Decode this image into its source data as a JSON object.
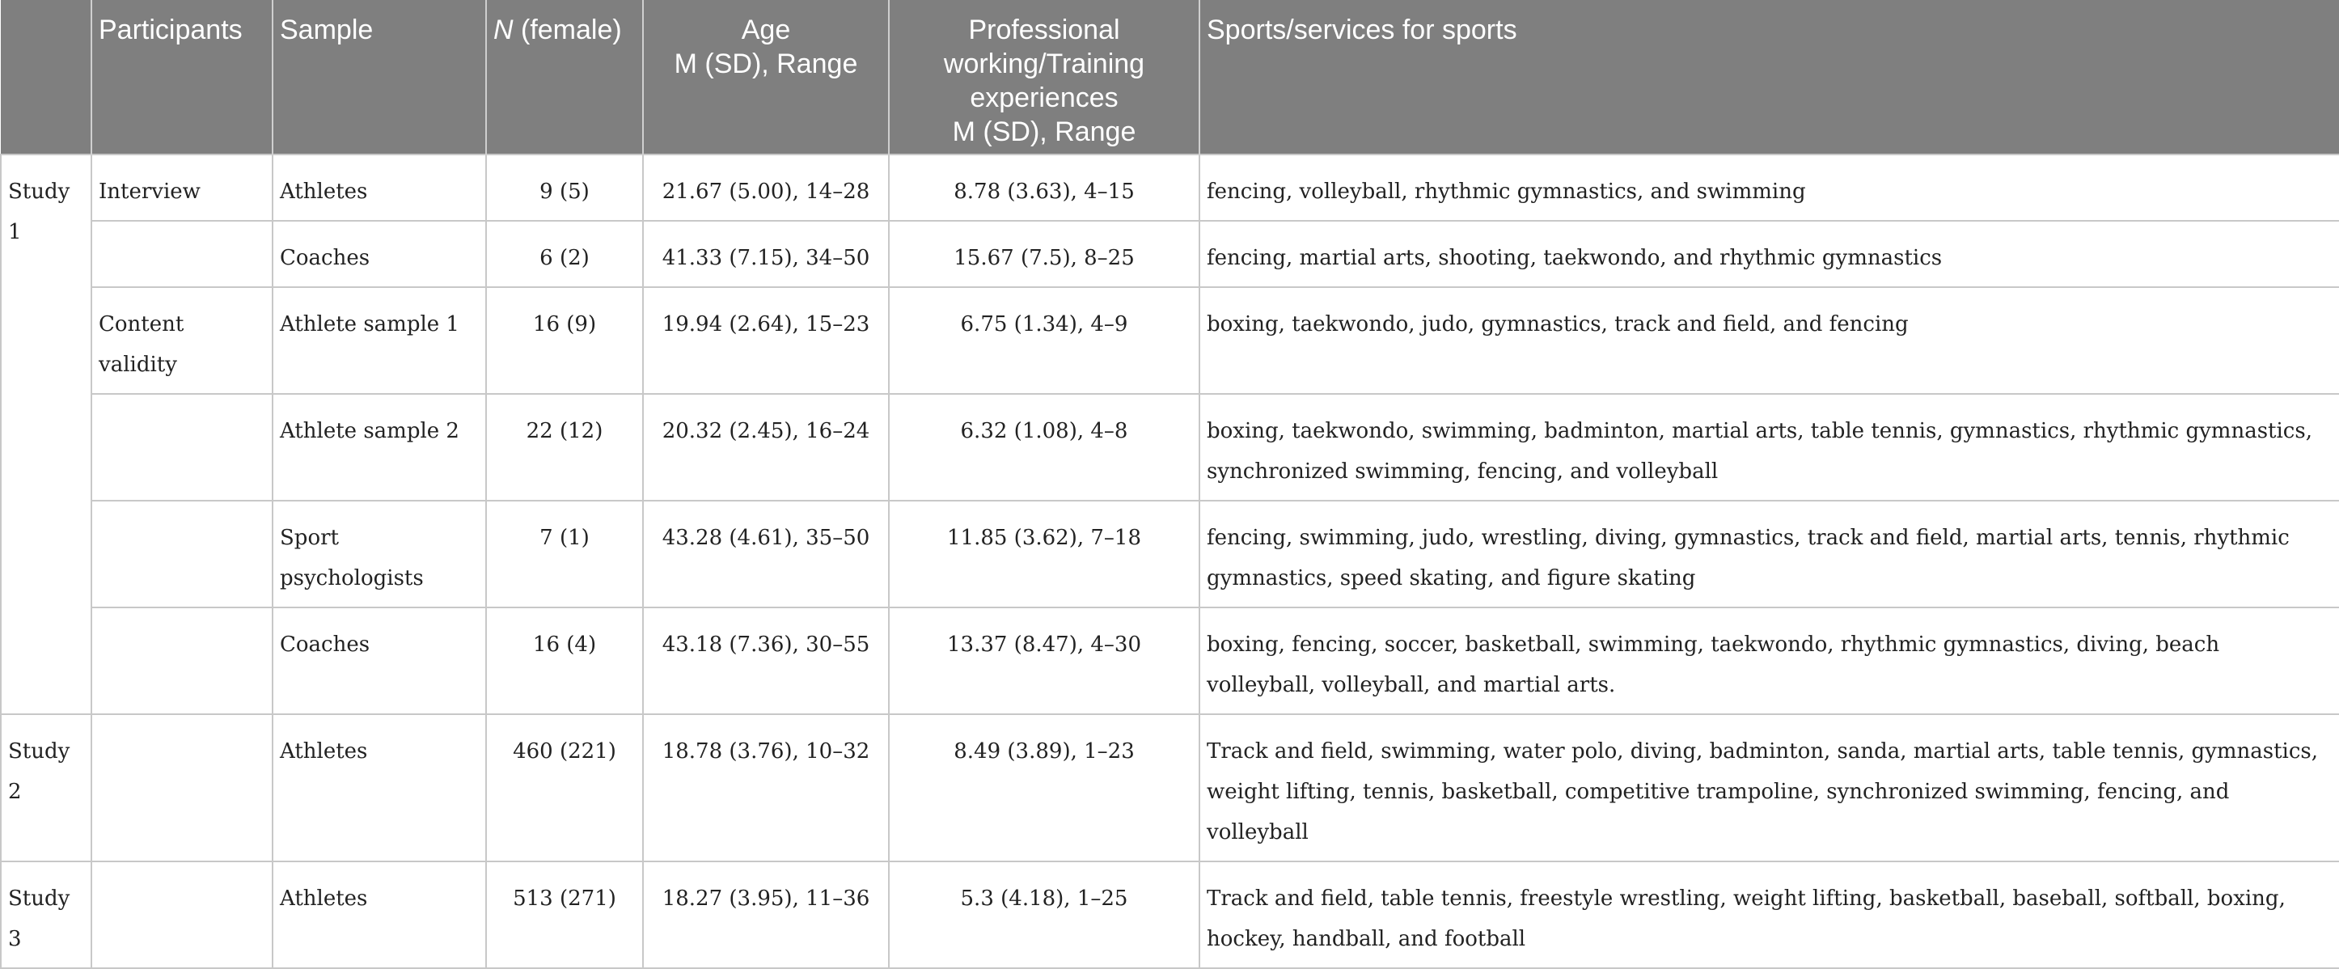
{
  "headers": {
    "col0": "",
    "col1": "Participants",
    "col2": "Sample",
    "col3_italic": "N",
    "col3_rest": " (female)",
    "col4_line1": "Age",
    "col4_line2": "M (SD), Range",
    "col5_line1": "Professional",
    "col5_line2": "working/Training",
    "col5_line3": "experiences",
    "col5_line4": "M (SD), Range",
    "col6": "Sports/services for sports"
  },
  "studies": {
    "s1": "Study 1",
    "s2": "Study 2",
    "s3": "Study 3"
  },
  "participants": {
    "interview": "Interview",
    "content_validity": "Content validity"
  },
  "rows": [
    {
      "sample": "Athletes",
      "n": "9 (5)",
      "age": "21.67 (5.00), 14–28",
      "exp": "8.78 (3.63), 4–15",
      "sports": "fencing, volleyball, rhythmic gymnastics, and swimming"
    },
    {
      "sample": "Coaches",
      "n": "6 (2)",
      "age": "41.33 (7.15), 34–50",
      "exp": "15.67 (7.5), 8–25",
      "sports": "fencing, martial arts, shooting, taekwondo, and rhythmic gymnastics"
    },
    {
      "sample": "Athlete sample 1",
      "n": "16 (9)",
      "age": "19.94 (2.64), 15–23",
      "exp": "6.75 (1.34), 4–9",
      "sports": "boxing, taekwondo, judo, gymnastics, track and field, and fencing"
    },
    {
      "sample": "Athlete sample 2",
      "n": "22 (12)",
      "age": "20.32 (2.45), 16–24",
      "exp": "6.32 (1.08), 4–8",
      "sports": "boxing, taekwondo, swimming, badminton, martial arts, table tennis, gymnastics, rhythmic gymnastics, synchronized swimming, fencing, and volleyball"
    },
    {
      "sample": "Sport psychologists",
      "n": "7 (1)",
      "age": "43.28 (4.61), 35–50",
      "exp": "11.85 (3.62), 7–18",
      "sports": "fencing, swimming, judo, wrestling, diving, gymnastics, track and field, martial arts, tennis, rhythmic gymnastics, speed skating, and figure skating"
    },
    {
      "sample": "Coaches",
      "n": "16 (4)",
      "age": "43.18 (7.36), 30–55",
      "exp": "13.37 (8.47), 4–30",
      "sports": "boxing, fencing, soccer, basketball, swimming, taekwondo, rhythmic gymnastics, diving, beach volleyball, volleyball, and martial arts."
    },
    {
      "sample": "Athletes",
      "n": "460 (221)",
      "age": "18.78 (3.76), 10–32",
      "exp": "8.49 (3.89), 1–23",
      "sports": "Track and field, swimming, water polo, diving, badminton, sanda, martial arts, table tennis, gymnastics, weight lifting, tennis, basketball, competitive trampoline, synchronized swimming, fencing, and volleyball"
    },
    {
      "sample": "Athletes",
      "n": "513 (271)",
      "age": "18.27 (3.95), 11–36",
      "exp": "5.3 (4.18), 1–25",
      "sports": "Track and field, table tennis, freestyle wrestling, weight lifting, basketball, baseball, softball, boxing, hockey, handball, and football"
    }
  ]
}
